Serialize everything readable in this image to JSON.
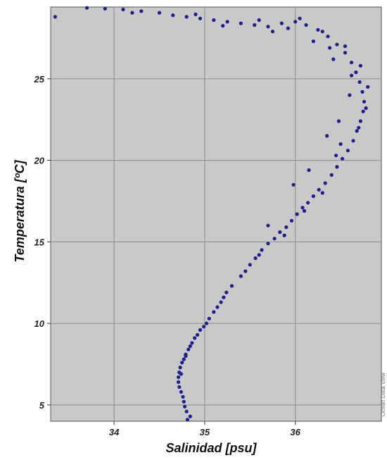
{
  "chart_data": {
    "type": "scatter",
    "title": "",
    "xlabel": "Salinidad [psu]",
    "ylabel": "Temperatura [ºC]",
    "xlim": [
      33.3,
      36.95
    ],
    "ylim": [
      4,
      29.4
    ],
    "xticks": [
      34,
      35,
      36
    ],
    "yticks": [
      5,
      10,
      15,
      20,
      25
    ],
    "grid": true,
    "background_color": "#c9c9c9",
    "point_color": "#1f1f8a",
    "series": [
      {
        "points": [
          [
            34.84,
            4.3
          ],
          [
            34.8,
            4.6
          ],
          [
            34.78,
            4.9
          ],
          [
            34.77,
            5.2
          ],
          [
            34.76,
            5.5
          ],
          [
            34.74,
            5.8
          ],
          [
            34.72,
            6.1
          ],
          [
            34.71,
            6.4
          ],
          [
            34.71,
            6.7
          ],
          [
            34.72,
            7.0
          ],
          [
            34.73,
            7.3
          ],
          [
            34.75,
            7.6
          ],
          [
            34.77,
            7.8
          ],
          [
            34.79,
            8.1
          ],
          [
            34.82,
            8.4
          ],
          [
            34.84,
            8.6
          ],
          [
            34.86,
            8.8
          ],
          [
            34.89,
            9.1
          ],
          [
            34.92,
            9.3
          ],
          [
            34.95,
            9.6
          ],
          [
            34.99,
            9.8
          ],
          [
            35.02,
            10.0
          ],
          [
            35.1,
            10.7
          ],
          [
            35.14,
            11.0
          ],
          [
            35.18,
            11.3
          ],
          [
            35.21,
            11.6
          ],
          [
            35.24,
            11.9
          ],
          [
            35.4,
            12.9
          ],
          [
            35.45,
            13.2
          ],
          [
            35.5,
            13.6
          ],
          [
            35.56,
            14.0
          ],
          [
            35.63,
            14.5
          ],
          [
            35.7,
            14.9
          ],
          [
            35.77,
            15.2
          ],
          [
            35.83,
            15.6
          ],
          [
            35.9,
            15.9
          ],
          [
            35.96,
            16.3
          ],
          [
            36.02,
            16.7
          ],
          [
            36.08,
            17.1
          ],
          [
            36.14,
            17.4
          ],
          [
            36.2,
            17.8
          ],
          [
            36.26,
            18.2
          ],
          [
            36.33,
            18.6
          ],
          [
            36.4,
            19.1
          ],
          [
            36.46,
            19.6
          ],
          [
            36.52,
            20.1
          ],
          [
            36.58,
            20.6
          ],
          [
            36.64,
            21.2
          ],
          [
            36.68,
            21.8
          ],
          [
            36.72,
            22.4
          ],
          [
            36.75,
            23.0
          ],
          [
            36.76,
            23.6
          ],
          [
            36.74,
            24.2
          ],
          [
            36.71,
            24.8
          ],
          [
            36.67,
            25.4
          ],
          [
            36.62,
            26.0
          ],
          [
            36.55,
            26.6
          ],
          [
            36.46,
            27.1
          ],
          [
            36.36,
            27.6
          ],
          [
            36.25,
            28.0
          ],
          [
            36.12,
            28.3
          ],
          [
            36.0,
            28.5
          ],
          [
            35.85,
            28.4
          ],
          [
            35.7,
            28.2
          ],
          [
            35.55,
            28.3
          ],
          [
            35.4,
            28.4
          ],
          [
            35.25,
            28.5
          ],
          [
            35.1,
            28.6
          ],
          [
            34.95,
            28.7
          ],
          [
            34.8,
            28.8
          ],
          [
            34.65,
            28.9
          ],
          [
            34.5,
            29.05
          ],
          [
            34.3,
            29.15
          ],
          [
            34.1,
            29.25
          ],
          [
            33.9,
            29.3
          ],
          [
            33.7,
            29.35
          ],
          [
            34.79,
            8.0
          ],
          [
            34.74,
            6.9
          ],
          [
            34.81,
            4.1
          ],
          [
            35.05,
            10.3
          ],
          [
            35.3,
            12.3
          ],
          [
            35.6,
            14.2
          ],
          [
            35.88,
            15.4
          ],
          [
            36.1,
            16.9
          ],
          [
            36.3,
            18.0
          ],
          [
            36.45,
            20.3
          ],
          [
            36.7,
            22.0
          ],
          [
            36.78,
            23.2
          ],
          [
            36.8,
            24.5
          ],
          [
            36.72,
            25.8
          ],
          [
            36.55,
            27.0
          ],
          [
            36.3,
            27.9
          ],
          [
            36.05,
            28.7
          ],
          [
            35.92,
            28.1
          ],
          [
            35.6,
            28.6
          ],
          [
            35.2,
            28.25
          ],
          [
            34.9,
            28.95
          ],
          [
            34.2,
            29.05
          ],
          [
            33.35,
            28.8
          ],
          [
            36.38,
            26.9
          ],
          [
            36.6,
            24.0
          ],
          [
            36.48,
            22.4
          ],
          [
            36.35,
            21.5
          ],
          [
            36.15,
            19.4
          ],
          [
            36.5,
            21.0
          ],
          [
            36.62,
            25.2
          ],
          [
            36.42,
            26.2
          ],
          [
            36.2,
            27.3
          ],
          [
            35.75,
            27.9
          ],
          [
            35.98,
            18.5
          ],
          [
            35.7,
            16.0
          ]
        ]
      }
    ]
  },
  "right_note": "Ocean Data View"
}
